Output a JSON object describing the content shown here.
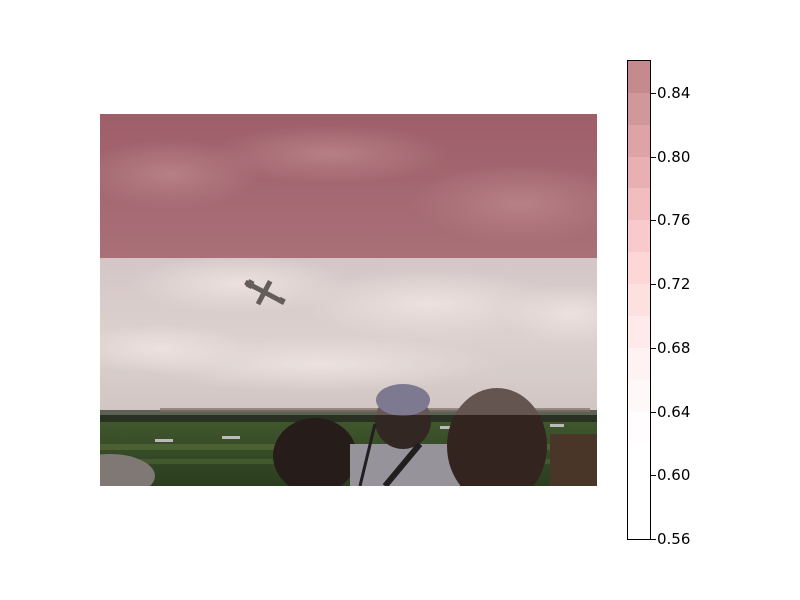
{
  "image": {
    "description_icon": "airshow-photo",
    "overlay_bands": [
      {
        "value": 0.85,
        "color": "#8b2d3a",
        "opacity": 0.55
      },
      {
        "value": 0.64,
        "color": "#f3e6e6",
        "opacity": 0.25
      },
      {
        "value": 0.56,
        "color": "#ffffff",
        "opacity": 0.0
      }
    ]
  },
  "colorbar": {
    "ticks": [
      "0.84",
      "0.80",
      "0.76",
      "0.72",
      "0.68",
      "0.64",
      "0.60",
      "0.56"
    ],
    "segments": [
      "#c48a8e",
      "#d1989b",
      "#dea3a6",
      "#e8b0b2",
      "#f2bdbe",
      "#f9cacb",
      "#fdd6d6",
      "#fde0e0",
      "#feeaea",
      "#fff2f2",
      "#fff8f8",
      "#fffdfd",
      "#ffffff",
      "#ffffff",
      "#ffffff"
    ],
    "range": [
      0.56,
      0.86
    ]
  }
}
